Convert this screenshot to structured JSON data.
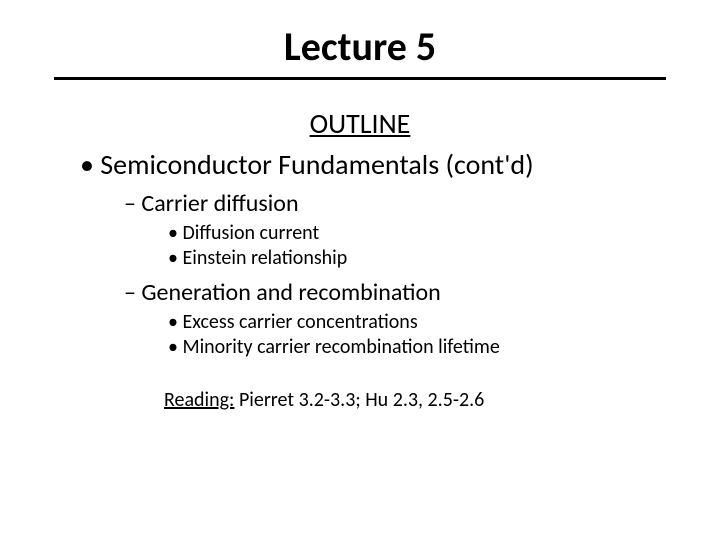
{
  "title": "Lecture 5",
  "outline_label": "OUTLINE",
  "topic": "Semiconductor Fundamentals (cont'd)",
  "sections": [
    {
      "heading": "Carrier diffusion",
      "items": [
        "Diffusion current",
        "Einstein relationship"
      ]
    },
    {
      "heading": "Generation and recombination",
      "items": [
        "Excess carrier concentrations",
        "Minority carrier recombination lifetime"
      ]
    }
  ],
  "reading_label": "Reading:",
  "reading_text": " Pierret 3.2-3.3; Hu 2.3, 2.5-2.6"
}
